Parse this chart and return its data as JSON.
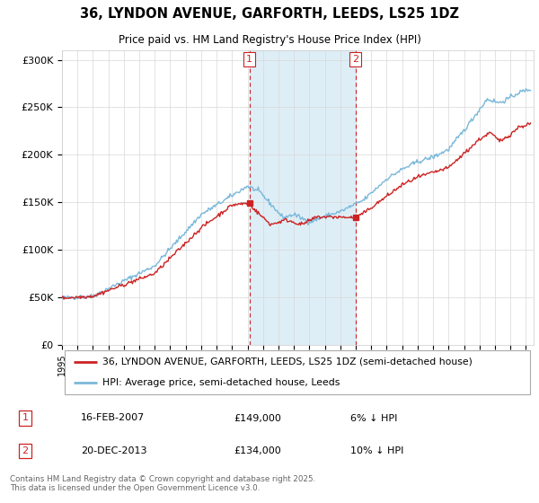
{
  "title": "36, LYNDON AVENUE, GARFORTH, LEEDS, LS25 1DZ",
  "subtitle": "Price paid vs. HM Land Registry's House Price Index (HPI)",
  "ylabel_ticks": [
    "£0",
    "£50K",
    "£100K",
    "£150K",
    "£200K",
    "£250K",
    "£300K"
  ],
  "ytick_values": [
    0,
    50000,
    100000,
    150000,
    200000,
    250000,
    300000
  ],
  "ylim": [
    0,
    310000
  ],
  "xlim_start": 1995,
  "xlim_end": 2025.5,
  "legend_line1": "36, LYNDON AVENUE, GARFORTH, LEEDS, LS25 1DZ (semi-detached house)",
  "legend_line2": "HPI: Average price, semi-detached house, Leeds",
  "sale1_date": "16-FEB-2007",
  "sale1_price": "£149,000",
  "sale1_note": "6% ↓ HPI",
  "sale2_date": "20-DEC-2013",
  "sale2_price": "£134,000",
  "sale2_note": "10% ↓ HPI",
  "footer": "Contains HM Land Registry data © Crown copyright and database right 2025.\nThis data is licensed under the Open Government Licence v3.0.",
  "hpi_color": "#7ab8d9",
  "sale_color": "#cc2222",
  "shaded_color": "#d0e8f5",
  "sale1_x": 2007.12,
  "sale1_y": 149000,
  "sale2_x": 2013.97,
  "sale2_y": 134000
}
